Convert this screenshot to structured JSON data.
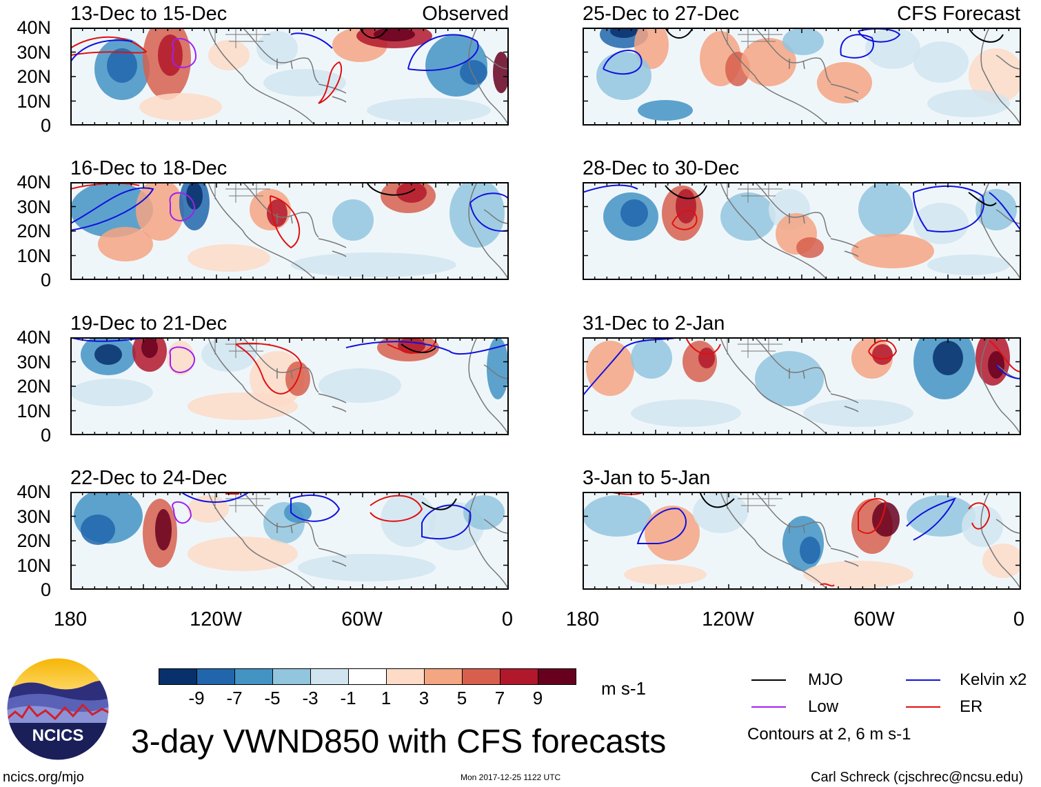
{
  "title": "3-day VWND850 with CFS forecasts",
  "colors": {
    "mjo": "#000000",
    "low": "#a020f0",
    "kelvin": "#1010e0",
    "er": "#e01010",
    "land_outline": "#777777"
  },
  "observed_label": "Observed",
  "forecast_label": "CFS Forecast",
  "lat_labels": [
    "40N",
    "30N",
    "20N",
    "10N",
    "0"
  ],
  "lon_labels": [
    "180",
    "120W",
    "60W",
    "0"
  ],
  "observed_panels": [
    {
      "title": "13-Dec to 15-Dec"
    },
    {
      "title": "16-Dec to 18-Dec"
    },
    {
      "title": "19-Dec to 21-Dec"
    },
    {
      "title": "22-Dec to 24-Dec"
    }
  ],
  "forecast_panels": [
    {
      "title": "25-Dec to 27-Dec"
    },
    {
      "title": "28-Dec to 30-Dec"
    },
    {
      "title": "31-Dec to 2-Jan"
    },
    {
      "title": "3-Jan to 5-Jan"
    }
  ],
  "colorbar": {
    "colors": [
      "#08306b",
      "#2166ac",
      "#4393c3",
      "#92c5de",
      "#d1e5f0",
      "#ffffff",
      "#fddbc7",
      "#f4a582",
      "#d6604d",
      "#b2182b",
      "#67001f"
    ],
    "tick_labels": [
      "-9",
      "-7",
      "-5",
      "-3",
      "-1",
      "1",
      "3",
      "5",
      "7",
      "9"
    ],
    "units": "m s-1"
  },
  "legend": {
    "mjo": "MJO",
    "kelvin": "Kelvin x2",
    "low": "Low",
    "er": "ER",
    "contours_note": "Contours at 2, 6 m s-1"
  },
  "footer": {
    "url": "ncics.org/mjo",
    "timestamp": "Mon 2017-12-25 1122 UTC",
    "author": "Carl Schreck (cjschrec@ncsu.edu)",
    "logo_text": "NCICS"
  }
}
